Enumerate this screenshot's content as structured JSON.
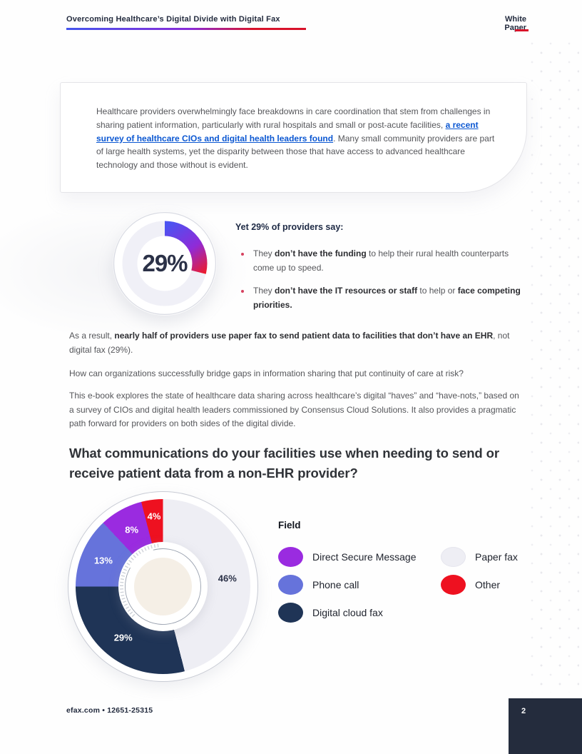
{
  "header": {
    "title": "Overcoming Healthcare’s Digital Divide with Digital Fax",
    "badge": "White Paper"
  },
  "intro_card": {
    "text_before_link": "Healthcare providers overwhelmingly face breakdowns in care coordination that stem from challenges in sharing patient information, particularly with rural hospitals and small or post-acute facilities, ",
    "link_text": "a recent survey of healthcare CIOs and digital health leaders found",
    "text_after_link": ". Many small community providers are part of large health systems, yet the disparity between those that have access to advanced healthcare technology and those without is evident."
  },
  "gauge_section": {
    "center_label": "29%",
    "heading": "Yet 29% of providers say:",
    "bullets": [
      {
        "t1": "They ",
        "b1": "don’t have the funding",
        "t2": " to help their rural health counterparts come up to speed.",
        "b2": ""
      },
      {
        "t1": "They ",
        "b1": "don’t have the IT resources or staff",
        "t2": " to help or ",
        "b2": "face competing priorities."
      }
    ]
  },
  "paragraphs": {
    "p1": {
      "t1": "As a result, ",
      "b1": "nearly half of providers use paper fax to send patient data to facilities that don’t have an EHR",
      "t2": ", not digital fax (29%)."
    },
    "p2": "How can organizations successfully bridge gaps in information sharing that put continuity of care at risk?",
    "p3": "This e-book explores the state of healthcare data sharing across healthcare’s digital “haves” and “have-nots,” based on a survey of CIOs and digital health leaders commissioned by Consensus Cloud Solutions. It also provides a pragmatic path forward for providers on both sides of the digital divide."
  },
  "question_heading": "What communications do your facilities use when needing to send or receive patient data from a non-EHR provider?",
  "legend": {
    "title": "Field",
    "items": [
      {
        "label": "Direct Secure Message",
        "color": "#9a2be0"
      },
      {
        "label": "Phone call",
        "color": "#6673db"
      },
      {
        "label": "Digital cloud fax",
        "color": "#1f3456"
      },
      {
        "label": "Paper fax",
        "color": "#eeeef4"
      },
      {
        "label": "Other",
        "color": "#ee1120"
      }
    ]
  },
  "footer": {
    "left": "efax.com • 12651-25315",
    "page_number": "2"
  },
  "chart_data": [
    {
      "type": "donut",
      "title": "Yet 29% of providers say",
      "values": [
        29,
        71
      ],
      "center_label": "29%",
      "arc_percent": 29,
      "gradient_colors": [
        "#4b53f1",
        "#8f2bd8",
        "#ec1b2e"
      ],
      "track_color": "#f0f0f7"
    },
    {
      "type": "pie",
      "title": "What communications do your facilities use when needing to send or receive patient data from a non-EHR provider?",
      "categories": [
        "Paper fax",
        "Digital cloud fax",
        "Phone call",
        "Direct Secure Message",
        "Other"
      ],
      "values": [
        46,
        29,
        13,
        8,
        4
      ],
      "slice_labels": [
        "46%",
        "29%",
        "13%",
        "8%",
        "4%"
      ],
      "colors": [
        "#eeeef4",
        "#1f3456",
        "#6673db",
        "#9a2be0",
        "#ee1120"
      ],
      "label_text_colors": [
        "#2b3147",
        "#ffffff",
        "#ffffff",
        "#ffffff",
        "#ffffff"
      ],
      "legend_position": "right",
      "start_angle_deg": 0
    }
  ]
}
